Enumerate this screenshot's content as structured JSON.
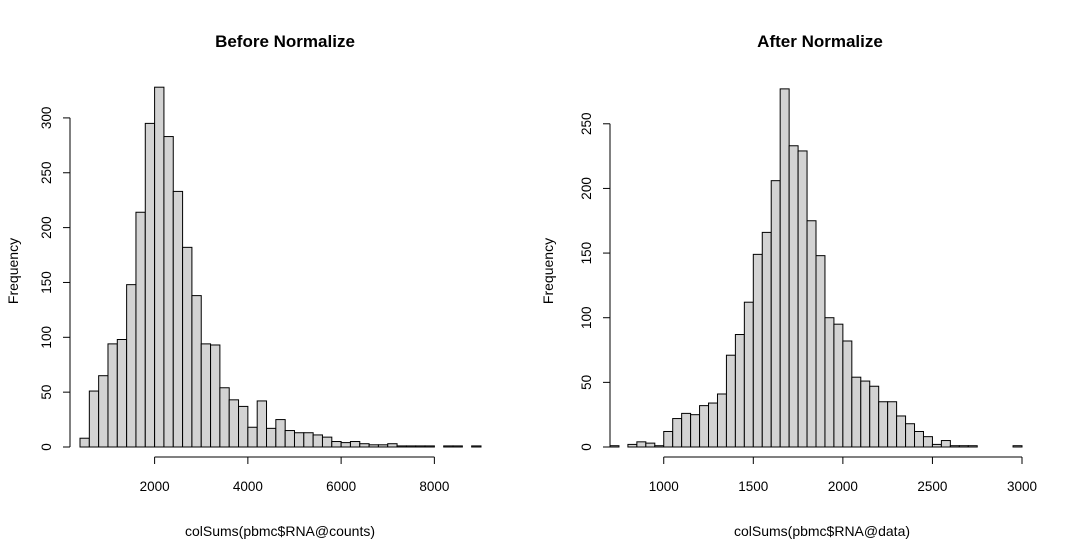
{
  "chart_data": [
    {
      "type": "bar",
      "subtype": "histogram",
      "title": "Before Normalize",
      "xlabel": "colSums(pbmc$RNA@counts)",
      "ylabel": "Frequency",
      "bin_width": 200,
      "bins_start": 400,
      "values": [
        8,
        51,
        65,
        94,
        98,
        148,
        214,
        295,
        328,
        283,
        233,
        182,
        138,
        94,
        93,
        54,
        43,
        37,
        18,
        42,
        17,
        25,
        15,
        13,
        13,
        11,
        9,
        5,
        4,
        5,
        3,
        2,
        2,
        3,
        1,
        1,
        1,
        1,
        0,
        1,
        1,
        0,
        1
      ],
      "xlim": [
        400,
        9000
      ],
      "ylim": [
        0,
        330
      ],
      "x_ticks": [
        2000,
        4000,
        6000,
        8000
      ],
      "y_ticks": [
        0,
        50,
        100,
        150,
        200,
        250,
        300
      ],
      "bar_fill": "#d3d3d3",
      "grid": false
    },
    {
      "type": "bar",
      "subtype": "histogram",
      "title": "After Normalize",
      "xlabel": "colSums(pbmc$RNA@data)",
      "ylabel": "Frequency",
      "bin_width": 50,
      "bins_start": 700,
      "values": [
        1,
        0,
        2,
        4,
        3,
        1,
        12,
        22,
        26,
        25,
        32,
        34,
        41,
        71,
        87,
        112,
        149,
        166,
        206,
        277,
        233,
        229,
        175,
        148,
        100,
        95,
        82,
        54,
        51,
        47,
        35,
        35,
        24,
        18,
        12,
        8,
        2,
        5,
        1,
        1,
        1,
        0,
        0,
        0,
        0,
        1
      ],
      "xlim": [
        700,
        3000
      ],
      "ylim": [
        0,
        280
      ],
      "x_ticks": [
        1000,
        1500,
        2000,
        2500,
        3000
      ],
      "y_ticks": [
        0,
        50,
        100,
        150,
        200,
        250
      ],
      "bar_fill": "#d3d3d3",
      "grid": false
    }
  ]
}
